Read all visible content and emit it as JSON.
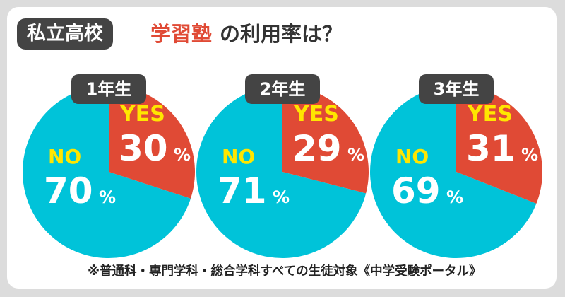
{
  "title": {
    "school_type": "私立高校",
    "highlight": "学習塾",
    "rest": "の利用率は？"
  },
  "footnote": "※普通科・専門学科・総合学科すべての生徒対象《中学受験ポータル》",
  "colors": {
    "yes": "#e04a35",
    "no": "#00c3d9",
    "no_label": "#ffe600",
    "badge": "#444444"
  },
  "chart_data": [
    {
      "type": "pie",
      "title": "1年生",
      "slices": [
        {
          "label": "YES",
          "value": 30,
          "display": "30"
        },
        {
          "label": "NO",
          "value": 70,
          "display": "70"
        }
      ],
      "unit": "%"
    },
    {
      "type": "pie",
      "title": "2年生",
      "slices": [
        {
          "label": "YES",
          "value": 29,
          "display": "29"
        },
        {
          "label": "NO",
          "value": 71,
          "display": "71"
        }
      ],
      "unit": "%"
    },
    {
      "type": "pie",
      "title": "3年生",
      "slices": [
        {
          "label": "YES",
          "value": 31,
          "display": "31"
        },
        {
          "label": "NO",
          "value": 69,
          "display": "69"
        }
      ],
      "unit": "%"
    }
  ]
}
